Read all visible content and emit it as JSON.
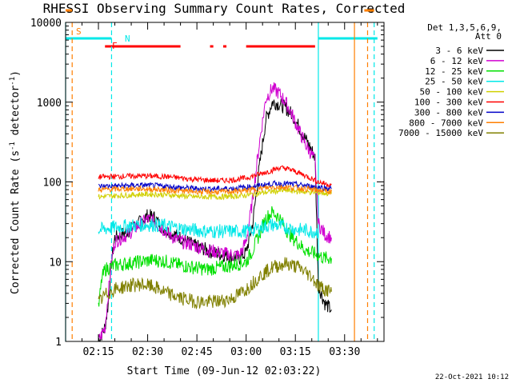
{
  "chart_data": {
    "type": "line",
    "title": "RHESSI Observing Summary Count Rates, Corrected",
    "xlabel": "Start Time (09-Jun-12 02:03:22)",
    "ylabel_main": "Corrected Count Rate (s",
    "ylabel_sup1": "-1",
    "ylabel_mid": " detector",
    "ylabel_sup2": "-1",
    "ylabel_end": ")",
    "date_stamp": "22-Oct-2021 10:12",
    "xlim": [
      "02:05",
      "03:42"
    ],
    "ylim": [
      1,
      10000
    ],
    "yscale": "log",
    "x_ticks": [
      "02:15",
      "02:30",
      "02:45",
      "03:00",
      "03:15",
      "03:30"
    ],
    "y_ticks": [
      "1",
      "10",
      "100",
      "1000",
      "10000"
    ],
    "legend": {
      "header": [
        "Det 1,3,5,6,9,",
        "Att 0"
      ],
      "placement": "right",
      "entries": [
        {
          "label": "3 - 6 keV",
          "color": "#000000"
        },
        {
          "label": "6 - 12 keV",
          "color": "#d000d0"
        },
        {
          "label": "12 - 25 keV",
          "color": "#00e000"
        },
        {
          "label": "25 - 50 keV",
          "color": "#00e8e8"
        },
        {
          "label": "50 - 100 keV",
          "color": "#d0d000"
        },
        {
          "label": "100 - 300 keV",
          "color": "#ff0000"
        },
        {
          "label": "300 - 800 keV",
          "color": "#0000c8"
        },
        {
          "label": "800 - 7000 keV",
          "color": "#ff7f00"
        },
        {
          "label": "7000 - 15000 keV",
          "color": "#808000"
        }
      ]
    },
    "flag_labels": {
      "saa": "S",
      "night": "N",
      "flare": "F"
    },
    "flag_colors": {
      "saa": "#ff7f00",
      "night": "#00e8e8",
      "flare": "#ff0000"
    },
    "flag_bars": [
      {
        "flag": "saa",
        "segments": [
          [
            "02:05",
            "02:07"
          ],
          [
            "03:36",
            "03:39"
          ]
        ]
      },
      {
        "flag": "night",
        "segments": [
          [
            "02:05",
            "02:19"
          ],
          [
            "03:22",
            "03:40"
          ]
        ]
      },
      {
        "flag": "flare",
        "segments": [
          [
            "02:17",
            "02:40"
          ],
          [
            "02:49",
            "02:50"
          ],
          [
            "02:53",
            "02:54"
          ],
          [
            "03:00",
            "03:21"
          ]
        ]
      }
    ],
    "vertical_markers": [
      {
        "time": "02:05",
        "color": "#00e8e8",
        "style": "solid"
      },
      {
        "time": "02:07",
        "color": "#ff7f00",
        "style": "dashed"
      },
      {
        "time": "02:19",
        "color": "#00e8e8",
        "style": "dashed"
      },
      {
        "time": "03:22",
        "color": "#00e8e8",
        "style": "solid"
      },
      {
        "time": "03:33",
        "color": "#ff7f00",
        "style": "solid"
      },
      {
        "time": "03:37",
        "color": "#ff7f00",
        "style": "dashed"
      },
      {
        "time": "03:39",
        "color": "#00e8e8",
        "style": "dashed"
      }
    ],
    "series": [
      {
        "name": "3 - 6 keV",
        "color": "#000000",
        "points": [
          [
            "02:15",
            1.0
          ],
          [
            "02:17",
            1.5
          ],
          [
            "02:18",
            3
          ],
          [
            "02:19",
            10
          ],
          [
            "02:20",
            20
          ],
          [
            "02:22",
            22
          ],
          [
            "02:24",
            24
          ],
          [
            "02:26",
            28
          ],
          [
            "02:28",
            32
          ],
          [
            "02:30",
            38
          ],
          [
            "02:32",
            36
          ],
          [
            "02:34",
            28
          ],
          [
            "02:36",
            24
          ],
          [
            "02:38",
            22
          ],
          [
            "02:40",
            20
          ],
          [
            "02:42",
            18
          ],
          [
            "02:44",
            16
          ],
          [
            "02:46",
            15
          ],
          [
            "02:48",
            14
          ],
          [
            "02:50",
            13
          ],
          [
            "02:52",
            12.5
          ],
          [
            "02:54",
            12
          ],
          [
            "02:56",
            11.5
          ],
          [
            "02:58",
            11
          ],
          [
            "03:00",
            13
          ],
          [
            "03:02",
            30
          ],
          [
            "03:04",
            150
          ],
          [
            "03:06",
            600
          ],
          [
            "03:08",
            1000
          ],
          [
            "03:10",
            950
          ],
          [
            "03:12",
            850
          ],
          [
            "03:14",
            700
          ],
          [
            "03:16",
            500
          ],
          [
            "03:18",
            350
          ],
          [
            "03:20",
            250
          ],
          [
            "03:21",
            200
          ],
          [
            "03:22",
            5
          ],
          [
            "03:24",
            3
          ],
          [
            "03:26",
            2.5
          ]
        ]
      },
      {
        "name": "6 - 12 keV",
        "color": "#d000d0",
        "points": [
          [
            "02:15",
            1.0
          ],
          [
            "02:17",
            1.5
          ],
          [
            "02:18",
            4
          ],
          [
            "02:19",
            10
          ],
          [
            "02:20",
            18
          ],
          [
            "02:22",
            20
          ],
          [
            "02:24",
            22
          ],
          [
            "02:26",
            26
          ],
          [
            "02:28",
            30
          ],
          [
            "02:30",
            34
          ],
          [
            "02:32",
            32
          ],
          [
            "02:34",
            27
          ],
          [
            "02:36",
            23
          ],
          [
            "02:38",
            20
          ],
          [
            "02:40",
            18
          ],
          [
            "02:42",
            17
          ],
          [
            "02:44",
            16
          ],
          [
            "02:46",
            15
          ],
          [
            "02:48",
            14
          ],
          [
            "02:50",
            13.5
          ],
          [
            "02:52",
            13
          ],
          [
            "02:54",
            12.5
          ],
          [
            "02:56",
            12.2
          ],
          [
            "02:58",
            12
          ],
          [
            "03:00",
            18
          ],
          [
            "03:02",
            60
          ],
          [
            "03:04",
            300
          ],
          [
            "03:06",
            1100
          ],
          [
            "03:08",
            1500
          ],
          [
            "03:10",
            1300
          ],
          [
            "03:12",
            1000
          ],
          [
            "03:14",
            700
          ],
          [
            "03:16",
            450
          ],
          [
            "03:18",
            300
          ],
          [
            "03:20",
            220
          ],
          [
            "03:21",
            180
          ],
          [
            "03:22",
            30
          ],
          [
            "03:24",
            22
          ],
          [
            "03:26",
            20
          ]
        ]
      },
      {
        "name": "12 - 25 keV",
        "color": "#00e000",
        "points": [
          [
            "02:15",
            2.5
          ],
          [
            "02:16",
            6
          ],
          [
            "02:17",
            8
          ],
          [
            "02:20",
            9
          ],
          [
            "02:24",
            9.5
          ],
          [
            "02:28",
            10
          ],
          [
            "02:32",
            10.5
          ],
          [
            "02:36",
            10
          ],
          [
            "02:40",
            9
          ],
          [
            "02:44",
            8.5
          ],
          [
            "02:48",
            8
          ],
          [
            "02:52",
            8.5
          ],
          [
            "02:56",
            9
          ],
          [
            "03:00",
            10
          ],
          [
            "03:02",
            14
          ],
          [
            "03:04",
            22
          ],
          [
            "03:06",
            35
          ],
          [
            "03:08",
            42
          ],
          [
            "03:10",
            36
          ],
          [
            "03:12",
            26
          ],
          [
            "03:14",
            20
          ],
          [
            "03:16",
            17
          ],
          [
            "03:18",
            14
          ],
          [
            "03:20",
            13
          ],
          [
            "03:22",
            12
          ],
          [
            "03:24",
            11
          ],
          [
            "03:26",
            11
          ]
        ]
      },
      {
        "name": "25 - 50 keV",
        "color": "#00e8e8",
        "points": [
          [
            "02:15",
            25
          ],
          [
            "02:20",
            27
          ],
          [
            "02:24",
            28
          ],
          [
            "02:28",
            29
          ],
          [
            "02:32",
            29
          ],
          [
            "02:36",
            28
          ],
          [
            "02:40",
            26
          ],
          [
            "02:44",
            25
          ],
          [
            "02:48",
            24
          ],
          [
            "02:52",
            24
          ],
          [
            "02:56",
            24
          ],
          [
            "03:00",
            24
          ],
          [
            "03:02",
            25
          ],
          [
            "03:04",
            26
          ],
          [
            "03:06",
            28
          ],
          [
            "03:08",
            29
          ],
          [
            "03:10",
            28
          ],
          [
            "03:12",
            27
          ],
          [
            "03:14",
            26
          ],
          [
            "03:16",
            25
          ],
          [
            "03:18",
            25
          ],
          [
            "03:20",
            24
          ],
          [
            "03:22",
            24
          ]
        ]
      },
      {
        "name": "50 - 100 keV",
        "color": "#d0d000",
        "points": [
          [
            "02:15",
            65
          ],
          [
            "02:20",
            67
          ],
          [
            "02:24",
            68
          ],
          [
            "02:28",
            70
          ],
          [
            "02:32",
            70
          ],
          [
            "02:36",
            69
          ],
          [
            "02:40",
            67
          ],
          [
            "02:44",
            65
          ],
          [
            "02:48",
            65
          ],
          [
            "02:52",
            65
          ],
          [
            "02:56",
            66
          ],
          [
            "03:00",
            68
          ],
          [
            "03:04",
            72
          ],
          [
            "03:08",
            76
          ],
          [
            "03:12",
            78
          ],
          [
            "03:16",
            76
          ],
          [
            "03:20",
            74
          ],
          [
            "03:24",
            72
          ],
          [
            "03:26",
            71
          ]
        ]
      },
      {
        "name": "100 - 300 keV",
        "color": "#ff0000",
        "points": [
          [
            "02:15",
            115
          ],
          [
            "02:20",
            117
          ],
          [
            "02:24",
            118
          ],
          [
            "02:28",
            119
          ],
          [
            "02:32",
            118
          ],
          [
            "02:36",
            116
          ],
          [
            "02:40",
            112
          ],
          [
            "02:44",
            108
          ],
          [
            "02:48",
            105
          ],
          [
            "02:52",
            104
          ],
          [
            "02:56",
            106
          ],
          [
            "03:00",
            112
          ],
          [
            "03:04",
            125
          ],
          [
            "03:08",
            140
          ],
          [
            "03:10",
            150
          ],
          [
            "03:12",
            148
          ],
          [
            "03:14",
            140
          ],
          [
            "03:16",
            130
          ],
          [
            "03:18",
            120
          ],
          [
            "03:20",
            110
          ],
          [
            "03:22",
            100
          ],
          [
            "03:24",
            95
          ],
          [
            "03:26",
            92
          ]
        ]
      },
      {
        "name": "300 - 800 keV",
        "color": "#0000c8",
        "points": [
          [
            "02:15",
            88
          ],
          [
            "02:20",
            89
          ],
          [
            "02:24",
            90
          ],
          [
            "02:28",
            91
          ],
          [
            "02:32",
            90
          ],
          [
            "02:36",
            88
          ],
          [
            "02:40",
            85
          ],
          [
            "02:44",
            83
          ],
          [
            "02:48",
            82
          ],
          [
            "02:52",
            82
          ],
          [
            "02:56",
            83
          ],
          [
            "03:00",
            86
          ],
          [
            "03:04",
            90
          ],
          [
            "03:08",
            95
          ],
          [
            "03:12",
            95
          ],
          [
            "03:16",
            92
          ],
          [
            "03:20",
            88
          ],
          [
            "03:24",
            84
          ],
          [
            "03:26",
            82
          ]
        ]
      },
      {
        "name": "800 - 7000 keV",
        "color": "#ff7f00",
        "points": [
          [
            "02:15",
            80
          ],
          [
            "02:20",
            81
          ],
          [
            "02:24",
            82
          ],
          [
            "02:28",
            82
          ],
          [
            "02:32",
            81
          ],
          [
            "02:36",
            79
          ],
          [
            "02:40",
            77
          ],
          [
            "02:44",
            76
          ],
          [
            "02:48",
            75
          ],
          [
            "02:52",
            75
          ],
          [
            "02:56",
            76
          ],
          [
            "03:00",
            78
          ],
          [
            "03:04",
            82
          ],
          [
            "03:08",
            86
          ],
          [
            "03:12",
            86
          ],
          [
            "03:16",
            84
          ],
          [
            "03:20",
            80
          ],
          [
            "03:24",
            77
          ],
          [
            "03:26",
            76
          ]
        ]
      },
      {
        "name": "7000 - 15000 keV",
        "color": "#808000",
        "points": [
          [
            "02:15",
            3
          ],
          [
            "02:17",
            3.8
          ],
          [
            "02:20",
            4.5
          ],
          [
            "02:24",
            5
          ],
          [
            "02:28",
            5.2
          ],
          [
            "02:32",
            4.8
          ],
          [
            "02:36",
            4
          ],
          [
            "02:40",
            3.5
          ],
          [
            "02:44",
            3.2
          ],
          [
            "02:48",
            3.1
          ],
          [
            "02:52",
            3.2
          ],
          [
            "02:56",
            3.5
          ],
          [
            "03:00",
            4.5
          ],
          [
            "03:04",
            6.5
          ],
          [
            "03:08",
            8.5
          ],
          [
            "03:12",
            9.5
          ],
          [
            "03:16",
            8.5
          ],
          [
            "03:20",
            6.5
          ],
          [
            "03:22",
            5
          ],
          [
            "03:24",
            4.5
          ],
          [
            "03:26",
            4.2
          ]
        ]
      }
    ]
  }
}
